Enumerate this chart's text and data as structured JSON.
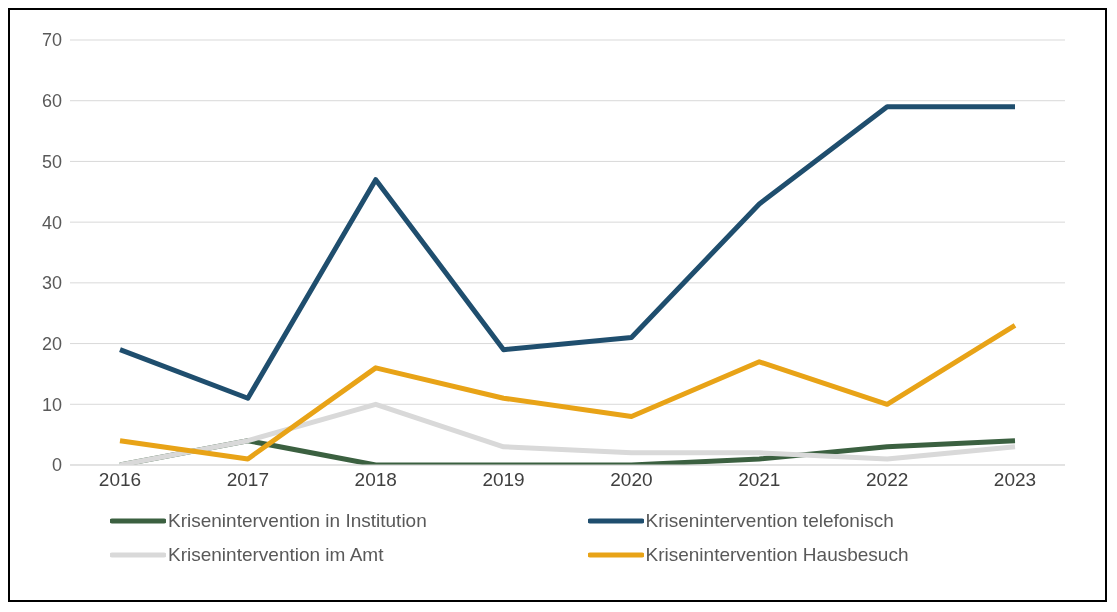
{
  "chart_data": {
    "type": "line",
    "categories": [
      "2016",
      "2017",
      "2018",
      "2019",
      "2020",
      "2021",
      "2022",
      "2023"
    ],
    "series": [
      {
        "name": "Krisenintervention in Institution",
        "color": "#3b6040",
        "values": [
          0,
          4,
          0,
          0,
          0,
          1,
          3,
          4
        ]
      },
      {
        "name": "Krisenintervention telefonisch",
        "color": "#1f4e6e",
        "values": [
          19,
          11,
          47,
          19,
          21,
          43,
          59,
          59
        ]
      },
      {
        "name": "Krisenintervention im Amt",
        "color": "#d9d9d9",
        "values": [
          0,
          4,
          10,
          3,
          2,
          2,
          1,
          3
        ]
      },
      {
        "name": "Krisenintervention Hausbesuch",
        "color": "#e8a317",
        "values": [
          4,
          1,
          16,
          11,
          8,
          17,
          10,
          23
        ]
      }
    ],
    "ylim": [
      0,
      70
    ],
    "yticks": [
      0,
      10,
      20,
      30,
      40,
      50,
      60,
      70
    ],
    "grid": "y",
    "legend": "bottom",
    "marker": "none",
    "line_style": "solid"
  }
}
